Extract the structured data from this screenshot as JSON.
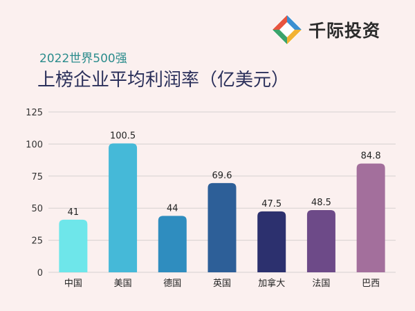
{
  "brand": {
    "name": "千际投资",
    "logo": "diamond-logo-icon"
  },
  "subtitle": "2022世界500强",
  "title": "上榜企业平均利润率（亿美元）",
  "colors": {
    "background": "#fbf0ef",
    "grid": "#d6d1d0",
    "bars": [
      "#6ee6ea",
      "#45b9d8",
      "#2f8dbf",
      "#2d5f98",
      "#2c306e",
      "#6d4a88",
      "#a36f9c"
    ]
  },
  "chart_data": {
    "type": "bar",
    "categories": [
      "中国",
      "美国",
      "德国",
      "英国",
      "加拿大",
      "法国",
      "巴西"
    ],
    "values": [
      41,
      100.5,
      44,
      69.6,
      47.5,
      48.5,
      84.8
    ],
    "value_labels": [
      "41",
      "100.5",
      "44",
      "69.6",
      "47.5",
      "48.5",
      "84.8"
    ],
    "ylim": [
      0,
      125
    ],
    "yticks": [
      0,
      25,
      50,
      75,
      100,
      125
    ],
    "grid": true,
    "xlabel": "",
    "ylabel": ""
  }
}
